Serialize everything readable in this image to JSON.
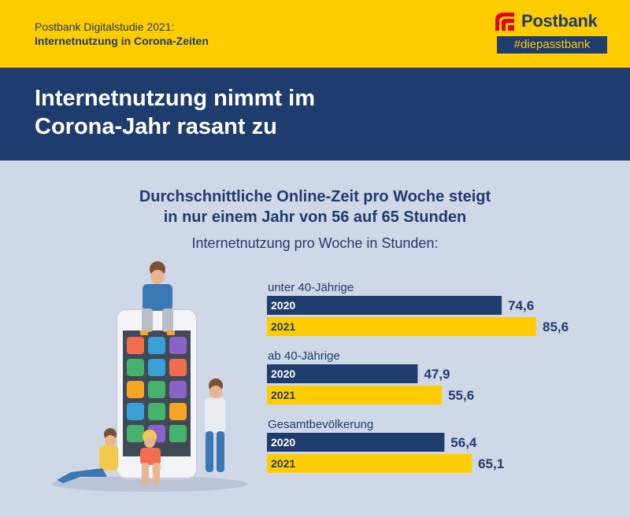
{
  "header": {
    "study_line1": "Postbank Digitalstudie 2021:",
    "study_line2": "Internetnutzung in Corona-Zeiten",
    "logo_name": "Postbank",
    "logo_tag": "#diepasstbank"
  },
  "banner": {
    "headline_line1": "Internetnutzung nimmt im",
    "headline_line2": "Corona-Jahr rasant zu"
  },
  "colors": {
    "brand_blue": "#1f3c6e",
    "brand_yellow": "#ffcc00",
    "background": "#cfd8e6"
  },
  "chart_data": {
    "type": "bar",
    "orientation": "horizontal",
    "title_line1": "Durchschnittliche Online-Zeit pro Woche steigt",
    "title_line2": "in nur einem Jahr von 56 auf 65 Stunden",
    "subtitle": "Internetnutzung pro Woche in Stunden:",
    "series_names": [
      "2020",
      "2021"
    ],
    "groups": [
      {
        "label": "unter 40-Jährige",
        "values": [
          {
            "year": "2020",
            "value": 74.6,
            "label": "74,6"
          },
          {
            "year": "2021",
            "value": 85.6,
            "label": "85,6"
          }
        ]
      },
      {
        "label": "ab 40-Jährige",
        "values": [
          {
            "year": "2020",
            "value": 47.9,
            "label": "47,9"
          },
          {
            "year": "2021",
            "value": 55.6,
            "label": "55,6"
          }
        ]
      },
      {
        "label": "Gesamtbevölkerung",
        "values": [
          {
            "year": "2020",
            "value": 56.4,
            "label": "56,4"
          },
          {
            "year": "2021",
            "value": 65.1,
            "label": "65,1"
          }
        ]
      }
    ],
    "xlim": [
      0,
      85.6
    ]
  }
}
